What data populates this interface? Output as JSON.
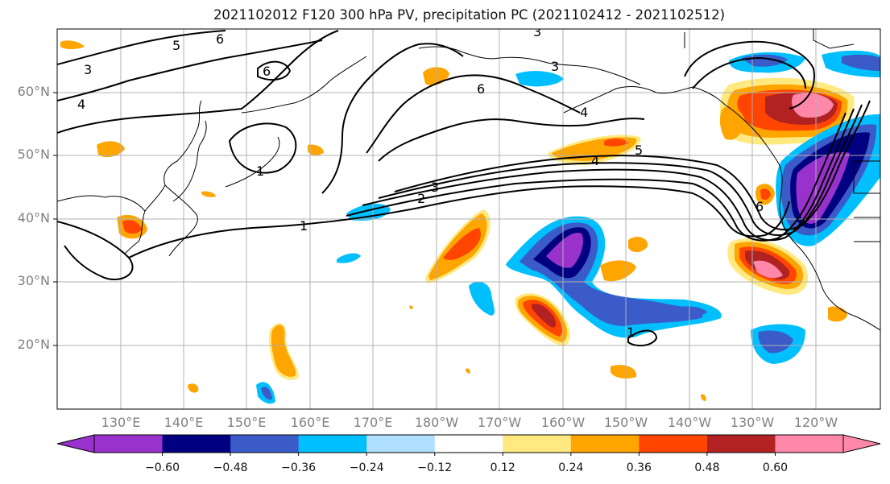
{
  "title": "2021102012 F120 300 hPa PV, precipitation PC (2021102412 - 2021102512)",
  "lat_labels": [
    "60°N",
    "50°N",
    "40°N",
    "30°N",
    "20°N"
  ],
  "lon_labels": [
    "130°E",
    "140°E",
    "150°E",
    "160°E",
    "170°E",
    "180°W",
    "170°W",
    "160°W",
    "150°W",
    "140°W",
    "130°W",
    "120°W"
  ],
  "colorbar": {
    "colors": [
      "#9932CC",
      "#000080",
      "#3A5BC8",
      "#00BFFF",
      "#B0E0FF",
      "#FFFFFF",
      "#FFE980",
      "#FFA500",
      "#FF4500",
      "#B22222",
      "#FF88AA"
    ],
    "tick_labels": [
      "−0.60",
      "−0.48",
      "−0.36",
      "−0.24",
      "−0.12",
      "0.12",
      "0.24",
      "0.36",
      "0.48",
      "0.60"
    ]
  },
  "contour_labels": [
    "5",
    "6",
    "3",
    "4",
    "6",
    "3",
    "3",
    "6",
    "4",
    "4",
    "5",
    "3",
    "2",
    "1",
    "1",
    "1",
    "6"
  ]
}
